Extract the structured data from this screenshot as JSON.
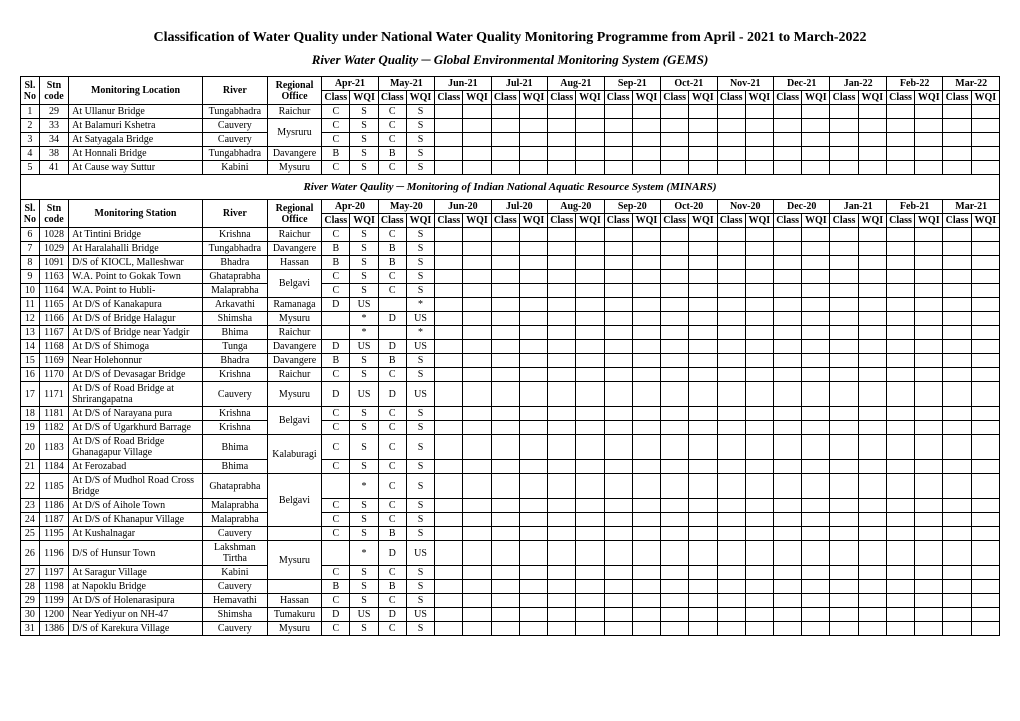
{
  "title": "Classification of  Water Quality under National Water Quality  Monitoring Programme from  April - 2021 to March-2022",
  "subtitle": "River Water Quality  ─  Global Environmental Monitoring System (GEMS)",
  "section2_title": "River Water Qaulity  ─  Monitoring of Indian National Aquatic Resource System (MINARS)",
  "headers": {
    "sl": "Sl. No",
    "stn": "Stn code",
    "loc1": "Monitoring Location",
    "loc2": "Monitoring Station",
    "river": "River",
    "regional": "Regional Office",
    "class": "Class",
    "wqi": "WQI"
  },
  "months1": [
    "Apr-21",
    "May-21",
    "Jun-21",
    "Jul-21",
    "Aug-21",
    "Sep-21",
    "Oct-21",
    "Nov-21",
    "Dec-21",
    "Jan-22",
    "Feb-22",
    "Mar-22"
  ],
  "months2": [
    "Apr-20",
    "May-20",
    "Jun-20",
    "Jul-20",
    "Aug-20",
    "Sep-20",
    "Oct-20",
    "Nov-20",
    "Dec-20",
    "Jan-21",
    "Feb-21",
    "Mar-21"
  ],
  "rows1": [
    {
      "sl": "1",
      "stn": "29",
      "loc": "At Ullanur Bridge",
      "river": "Tungabhadra",
      "reg": "Raichur",
      "d": [
        "C",
        "S",
        "C",
        "S"
      ]
    },
    {
      "sl": "2",
      "stn": "33",
      "loc": "At Balamuri Kshetra",
      "river": "Cauvery",
      "reg": "",
      "d": [
        "C",
        "S",
        "C",
        "S"
      ],
      "regspan": "start",
      "regval": "Mysruru",
      "regrows": 2
    },
    {
      "sl": "3",
      "stn": "34",
      "loc": "At Satyagala Bridge",
      "river": "Cauvery",
      "reg": "",
      "d": [
        "C",
        "S",
        "C",
        "S"
      ],
      "regspan": "skip"
    },
    {
      "sl": "4",
      "stn": "38",
      "loc": "At Honnali Bridge",
      "river": "Tungabhadra",
      "reg": "Davangere",
      "d": [
        "B",
        "S",
        "B",
        "S"
      ]
    },
    {
      "sl": "5",
      "stn": "41",
      "loc": "At Cause way Suttur",
      "river": "Kabini",
      "reg": "Mysuru",
      "d": [
        "C",
        "S",
        "C",
        "S"
      ]
    }
  ],
  "rows2": [
    {
      "sl": "6",
      "stn": "1028",
      "loc": "At Tintini Bridge",
      "river": "Krishna",
      "reg": "Raichur",
      "d": [
        "C",
        "S",
        "C",
        "S"
      ]
    },
    {
      "sl": "7",
      "stn": "1029",
      "loc": "At Haralahalli Bridge",
      "river": "Tungabhadra",
      "reg": "Davangere",
      "d": [
        "B",
        "S",
        "B",
        "S"
      ]
    },
    {
      "sl": "8",
      "stn": "1091",
      "loc": "D/S of KIOCL, Malleshwar",
      "river": "Bhadra",
      "reg": "Hassan",
      "d": [
        "B",
        "S",
        "B",
        "S"
      ]
    },
    {
      "sl": "9",
      "stn": "1163",
      "loc": "W.A. Point to Gokak Town",
      "river": "Ghataprabha",
      "reg": "",
      "d": [
        "C",
        "S",
        "C",
        "S"
      ],
      "regspan": "start",
      "regval": "Belgavi",
      "regrows": 2
    },
    {
      "sl": "10",
      "stn": "1164",
      "loc": "W.A. Point to Hubli-",
      "river": "Malaprabha",
      "reg": "",
      "d": [
        "C",
        "S",
        "C",
        "S"
      ],
      "regspan": "skip"
    },
    {
      "sl": "11",
      "stn": "1165",
      "loc": "At D/S of Kanakapura",
      "river": "Arkavathi",
      "reg": "Ramanaga",
      "d": [
        "D",
        "US",
        "",
        "*"
      ]
    },
    {
      "sl": "12",
      "stn": "1166",
      "loc": "At D/S of Bridge Halagur",
      "river": "Shimsha",
      "reg": "Mysuru",
      "d": [
        "",
        "*",
        "D",
        "US"
      ]
    },
    {
      "sl": "13",
      "stn": "1167",
      "loc": "At D/S of Bridge near Yadgir",
      "river": "Bhima",
      "reg": "Raichur",
      "d": [
        "",
        "*",
        "",
        "*"
      ]
    },
    {
      "sl": "14",
      "stn": "1168",
      "loc": "At D/S of Shimoga",
      "river": "Tunga",
      "reg": "Davangere",
      "d": [
        "D",
        "US",
        "D",
        "US"
      ]
    },
    {
      "sl": "15",
      "stn": "1169",
      "loc": "Near Holehonnur",
      "river": "Bhadra",
      "reg": "Davangere",
      "d": [
        "B",
        "S",
        "B",
        "S"
      ]
    },
    {
      "sl": "16",
      "stn": "1170",
      "loc": "At D/S of Devasagar Bridge",
      "river": "Krishna",
      "reg": "Raichur",
      "d": [
        "C",
        "S",
        "C",
        "S"
      ]
    },
    {
      "sl": "17",
      "stn": "1171",
      "loc": "At D/S of Road Bridge at Shrirangapatna",
      "river": "Cauvery",
      "reg": "Mysuru",
      "d": [
        "D",
        "US",
        "D",
        "US"
      ],
      "wrap": true
    },
    {
      "sl": "18",
      "stn": "1181",
      "loc": "At D/S of Narayana pura",
      "river": "Krishna",
      "reg": "",
      "d": [
        "C",
        "S",
        "C",
        "S"
      ],
      "regspan": "start",
      "regval": "Belgavi",
      "regrows": 2
    },
    {
      "sl": "19",
      "stn": "1182",
      "loc": "At D/S of Ugarkhurd Barrage",
      "river": "Krishna",
      "reg": "",
      "d": [
        "C",
        "S",
        "C",
        "S"
      ],
      "regspan": "skip"
    },
    {
      "sl": "20",
      "stn": "1183",
      "loc": "At D/S of Road Bridge Ghanagapur Village",
      "river": "Bhima",
      "reg": "",
      "d": [
        "C",
        "S",
        "C",
        "S"
      ],
      "wrap": true,
      "regspan": "start",
      "regval": "Kalaburagi",
      "regrows": 2
    },
    {
      "sl": "21",
      "stn": "1184",
      "loc": "At Ferozabad",
      "river": "Bhima",
      "reg": "",
      "d": [
        "C",
        "S",
        "C",
        "S"
      ],
      "regspan": "skip"
    },
    {
      "sl": "22",
      "stn": "1185",
      "loc": "At D/S of Mudhol Road Cross Bridge",
      "river": "Ghataprabha",
      "reg": "",
      "d": [
        "",
        "*",
        "C",
        "S"
      ],
      "wrap": true,
      "regspan": "start",
      "regval": "Belgavi",
      "regrows": 3
    },
    {
      "sl": "23",
      "stn": "1186",
      "loc": "At D/S of Aihole Town",
      "river": "Malaprabha",
      "reg": "",
      "d": [
        "C",
        "S",
        "C",
        "S"
      ],
      "regspan": "skip"
    },
    {
      "sl": "24",
      "stn": "1187",
      "loc": "At D/S of Khanapur Village",
      "river": "Malaprabha",
      "reg": "",
      "d": [
        "C",
        "S",
        "C",
        "S"
      ],
      "regspan": "skip"
    },
    {
      "sl": "25",
      "stn": "1195",
      "loc": "At Kushalnagar",
      "river": "Cauvery",
      "reg": "",
      "d": [
        "C",
        "S",
        "B",
        "S"
      ]
    },
    {
      "sl": "26",
      "stn": "1196",
      "loc": "D/S of Hunsur Town",
      "river": "Lakshman Tirtha",
      "reg": "",
      "d": [
        "",
        "*",
        "D",
        "US"
      ],
      "riverwrap": true,
      "regspan": "start",
      "regval": "Mysuru",
      "regrows": 2
    },
    {
      "sl": "27",
      "stn": "1197",
      "loc": "At Saragur Village",
      "river": "Kabini",
      "reg": "",
      "d": [
        "C",
        "S",
        "C",
        "S"
      ],
      "regspan": "skip"
    },
    {
      "sl": "28",
      "stn": "1198",
      "loc": "at Napoklu  Bridge",
      "river": "Cauvery",
      "reg": "",
      "d": [
        "B",
        "S",
        "B",
        "S"
      ]
    },
    {
      "sl": "29",
      "stn": "1199",
      "loc": "At D/S of Holenarasipura",
      "river": "Hemavathi",
      "reg": "Hassan",
      "d": [
        "C",
        "S",
        "C",
        "S"
      ]
    },
    {
      "sl": "30",
      "stn": "1200",
      "loc": "Near Yediyur on NH-47",
      "river": "Shimsha",
      "reg": "Tumakuru",
      "d": [
        "D",
        "US",
        "D",
        "US"
      ]
    },
    {
      "sl": "31",
      "stn": "1386",
      "loc": "D/S of Karekura Village",
      "river": "Cauvery",
      "reg": "Mysuru",
      "d": [
        "C",
        "S",
        "C",
        "S"
      ]
    }
  ],
  "colors": {
    "border": "#000000",
    "bg": "#ffffff",
    "text": "#000000"
  },
  "fonts": {
    "title_size": 14,
    "subtitle_size": 13,
    "body_size": 10
  }
}
